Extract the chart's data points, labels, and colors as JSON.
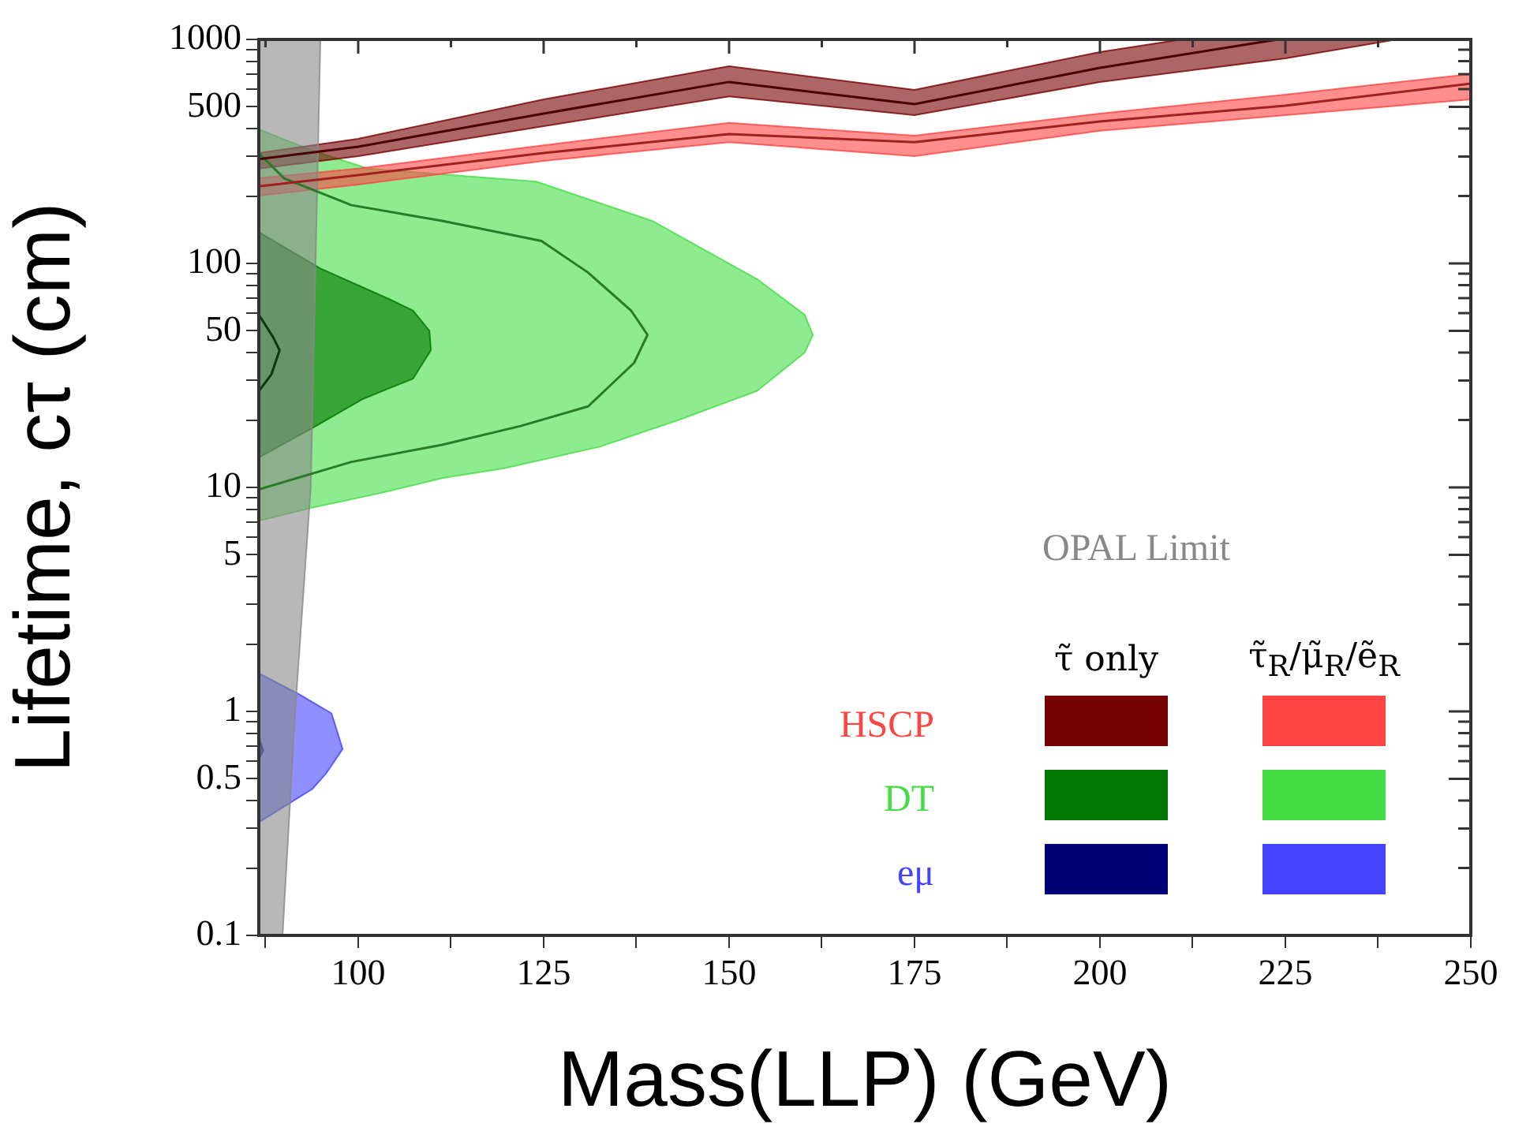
{
  "chart_data": {
    "type": "area",
    "xlabel": "Mass(LLP) (GeV)",
    "ylabel": "Lifetime, cτ (cm)",
    "xlim": [
      86.6,
      250
    ],
    "ylim": [
      0.1,
      1000
    ],
    "log": "y",
    "grid": false,
    "legend": "bottom right",
    "xticks": [
      {
        "value": 87.5,
        "label": null
      },
      100,
      {
        "value": 112.5,
        "label": null
      },
      125,
      {
        "value": 137.5,
        "label": null
      },
      150,
      {
        "value": 162.5,
        "label": null
      },
      175,
      {
        "value": 187.5,
        "label": null
      },
      200,
      {
        "value": 212.5,
        "label": null
      },
      225,
      {
        "value": 237.5,
        "label": null
      },
      250
    ],
    "yticks": [
      0.1,
      {
        "value": 0.2,
        "label": null
      },
      {
        "value": 0.3,
        "label": null
      },
      {
        "value": 0.4,
        "label": null
      },
      0.5,
      {
        "value": 0.6,
        "label": null
      },
      {
        "value": 0.7,
        "label": null
      },
      {
        "value": 0.8,
        "label": null
      },
      {
        "value": 0.9,
        "label": null
      },
      1,
      {
        "value": 2,
        "label": null
      },
      {
        "value": 3,
        "label": null
      },
      {
        "value": 4,
        "label": null
      },
      5,
      {
        "value": 6,
        "label": null
      },
      {
        "value": 7,
        "label": null
      },
      {
        "value": 8,
        "label": null
      },
      {
        "value": 9,
        "label": null
      },
      10,
      {
        "value": 20,
        "label": null
      },
      {
        "value": 30,
        "label": null
      },
      {
        "value": 40,
        "label": null
      },
      50,
      {
        "value": 60,
        "label": null
      },
      {
        "value": 70,
        "label": null
      },
      {
        "value": 80,
        "label": null
      },
      {
        "value": 90,
        "label": null
      },
      100,
      {
        "value": 200,
        "label": null
      },
      {
        "value": 300,
        "label": null
      },
      {
        "value": 400,
        "label": null
      },
      500,
      {
        "value": 600,
        "label": null
      },
      {
        "value": 700,
        "label": null
      },
      {
        "value": 800,
        "label": null
      },
      {
        "value": 900,
        "label": null
      },
      1000
    ],
    "annotations": [
      "OPAL Limit",
      "τ̃ only",
      "τ̃$_{R}$/μ̃$_{R}$/ẽ$_{R}$"
    ],
    "series": [
      {
        "color": "#888888",
        "x": [
          86.6,
          94.9,
          93.6,
          91.5,
          89.8,
          86.6
        ],
        "values": [
          1000,
          1000,
          10,
          1,
          0.1,
          0.1
        ]
      },
      {
        "color": "#770000",
        "x": [
          86.6,
          100,
          125,
          150,
          175,
          200,
          211,
          240,
          225,
          200,
          175,
          150,
          125,
          100,
          86.6
        ],
        "values": [
          311,
          360,
          540,
          759,
          595,
          879,
          1000,
          1000,
          823,
          646,
          459,
          557,
          410,
          301,
          265
        ]
      },
      {
        "name": "HSCP",
        "color": "#ff4444",
        "x": [
          86.6,
          100,
          125,
          150,
          175,
          200,
          225,
          250,
          250,
          225,
          200,
          175,
          150,
          125,
          100,
          86.6
        ],
        "values": [
          240,
          265,
          337,
          424,
          372,
          467,
          567,
          700,
          540,
          459,
          391,
          301,
          348,
          287,
          225,
          201
        ]
      },
      {
        "color": "#007700",
        "x": [
          86.6,
          94.9,
          104.3,
          107.4,
          109.6,
          109.8,
          107.4,
          100.6,
          94.3,
          86.6
        ],
        "values": [
          138,
          95,
          69,
          61.5,
          50,
          41,
          30.6,
          24.8,
          18.8,
          13.6
        ]
      },
      {
        "name": "DT",
        "color": "#44dd44",
        "x": [
          86.6,
          93.6,
          101.3,
          124,
          139.6,
          153.8,
          160.2,
          161.3,
          160.2,
          153.8,
          143.2,
          132.6,
          119.8,
          111.3,
          102.8,
          93.6,
          86.6
        ],
        "values": [
          397,
          321,
          265,
          232,
          155,
          85,
          59,
          48,
          40,
          27,
          20,
          15.2,
          12.2,
          11,
          9.4,
          8.1,
          7.1
        ]
      },
      {
        "color": "#000077",
        "x": [
          86.6,
          87.2,
          86.6
        ],
        "values": [
          0.76,
          0.67,
          0.61
        ]
      },
      {
        "name": "eμ",
        "color": "#4444ff",
        "x": [
          86.6,
          92.1,
          96.4,
          97.9,
          95.7,
          93.8,
          86.6
        ],
        "values": [
          1.48,
          1.19,
          0.98,
          0.68,
          0.53,
          0.45,
          0.32
        ]
      },
      {
        "type": "line",
        "color": "#4a0000",
        "x": [
          86.6,
          100,
          125,
          150,
          175,
          200,
          224
        ],
        "values": [
          292,
          332,
          467,
          646,
          514,
          747,
          1000
        ]
      },
      {
        "type": "line",
        "color": "#a02020",
        "x": [
          86.6,
          100,
          125,
          150,
          175,
          200,
          225,
          250
        ],
        "values": [
          221,
          248,
          311,
          378,
          348,
          430,
          506,
          635
        ]
      },
      {
        "type": "line",
        "color": "#2a7a2a",
        "x": [
          86.6,
          90,
          99.1,
          111.3,
          124.7,
          131,
          136.8,
          139,
          137.2,
          131,
          121.9,
          111.3,
          99.1,
          86.6
        ],
        "values": [
          311,
          240,
          182,
          155,
          126,
          91,
          61.5,
          48,
          36,
          23,
          18.8,
          15.5,
          13,
          9.8
        ]
      },
      {
        "type": "line",
        "color": "#0a3a0a",
        "x": [
          86.6,
          88.5,
          89.4,
          88.3,
          86.6
        ],
        "values": [
          59,
          47,
          41,
          32,
          26.9
        ]
      }
    ]
  }
}
